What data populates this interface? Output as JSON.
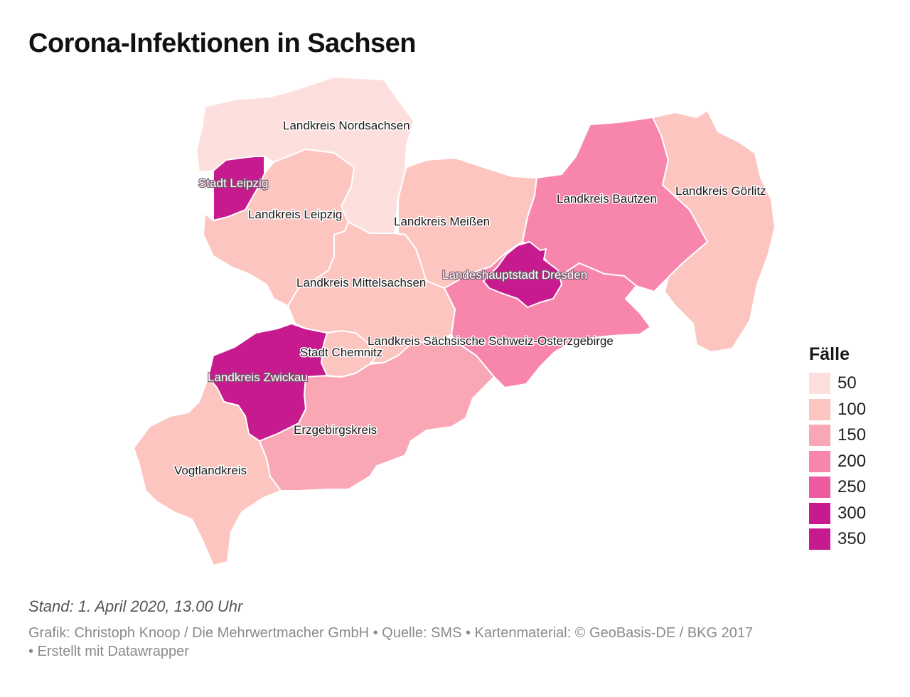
{
  "title": "Corona-Infektionen in Sachsen",
  "colors": {
    "c50": "#fde0dd",
    "c100": "#fcc5c0",
    "c150": "#f9a7b5",
    "c200": "#f886ac",
    "c250": "#ee5aa0",
    "c300": "#c81a8f",
    "c350": "#c81a8f"
  },
  "regions": {
    "nordsachsen": "Landkreis Nordsachsen",
    "leipzig_stadt": "Stadt Leipzig",
    "leipzig_kreis": "Landkreis Leipzig",
    "meissen": "Landkreis Meißen",
    "bautzen": "Landkreis Bautzen",
    "goerlitz": "Landkreis Görlitz",
    "dresden": "Landeshauptstadt Dresden",
    "mittelsachsen": "Landkreis Mittelsachsen",
    "saechsische_schweiz": "Landkreis Sächsische Schweiz-Osterzgebirge",
    "chemnitz": "Stadt Chemnitz",
    "zwickau": "Landkreis Zwickau",
    "erzgebirge": "Erzgebirgskreis",
    "vogtland": "Vogtlandkreis"
  },
  "legend": {
    "title": "Fälle",
    "items": [
      {
        "label": "50",
        "color": "#fde0dd"
      },
      {
        "label": "100",
        "color": "#fcc5c0"
      },
      {
        "label": "150",
        "color": "#f9a7b5"
      },
      {
        "label": "200",
        "color": "#f886ac"
      },
      {
        "label": "250",
        "color": "#ee5aa0"
      },
      {
        "label": "300",
        "color": "#c81a8f"
      },
      {
        "label": "350",
        "color": "#c81a8f"
      }
    ]
  },
  "footer": {
    "stand": "Stand: 1. April 2020, 13.00 Uhr",
    "credits_line1": "Grafik: Christoph Knoop / Die Mehrwertmacher GmbH • Quelle: SMS • Kartenmaterial: © GeoBasis-DE / BKG 2017",
    "credits_line2": "• Erstellt mit Datawrapper"
  }
}
